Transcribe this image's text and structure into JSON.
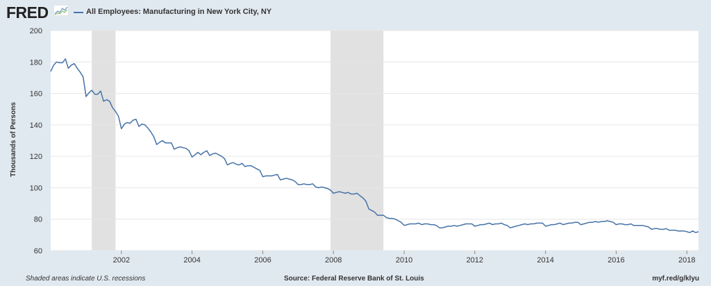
{
  "header": {
    "logo_text": "FRED",
    "title": "All Employees: Manufacturing in New York City, NY"
  },
  "footer": {
    "note": "Shaded areas indicate U.S. recessions",
    "source": "Source: Federal Reserve Bank of St. Louis",
    "url": "myf.red/g/klyu"
  },
  "colors": {
    "series": "#4572a7",
    "recession": "#e1e1e1",
    "background": "#e1e9f0",
    "plot_background": "#ffffff",
    "grid": "#e6e6e6"
  },
  "chart_data": {
    "type": "line",
    "title": "All Employees: Manufacturing in New York City, NY",
    "xlabel": "",
    "ylabel": "Thousands of Persons",
    "ylim": [
      60,
      200
    ],
    "yticks": [
      "60",
      "80",
      "100",
      "120",
      "140",
      "160",
      "180",
      "200"
    ],
    "xlim": [
      "2000-01-01",
      "2018-05-01"
    ],
    "xticks": [
      "2002",
      "2004",
      "2006",
      "2008",
      "2010",
      "2012",
      "2014",
      "2016",
      "2018"
    ],
    "grid": "horizontal",
    "recessions": [
      [
        "2001-03-01",
        "2001-11-01"
      ],
      [
        "2007-12-01",
        "2009-06-01"
      ]
    ],
    "series": [
      {
        "name": "All Employees: Manufacturing in New York City, NY",
        "x": [
          "2000-01-01",
          "2000-02-01",
          "2000-03-01",
          "2000-04-01",
          "2000-05-01",
          "2000-06-01",
          "2000-07-01",
          "2000-08-01",
          "2000-09-01",
          "2000-10-01",
          "2000-11-01",
          "2000-12-01",
          "2001-01-01",
          "2001-02-01",
          "2001-03-01",
          "2001-04-01",
          "2001-05-01",
          "2001-06-01",
          "2001-07-01",
          "2001-08-01",
          "2001-09-01",
          "2001-10-01",
          "2001-11-01",
          "2001-12-01",
          "2002-01-01",
          "2002-02-01",
          "2002-03-01",
          "2002-04-01",
          "2002-05-01",
          "2002-06-01",
          "2002-07-01",
          "2002-08-01",
          "2002-09-01",
          "2002-10-01",
          "2002-11-01",
          "2002-12-01",
          "2003-01-01",
          "2003-02-01",
          "2003-03-01",
          "2003-04-01",
          "2003-05-01",
          "2003-06-01",
          "2003-07-01",
          "2003-08-01",
          "2003-09-01",
          "2003-10-01",
          "2003-11-01",
          "2003-12-01",
          "2004-01-01",
          "2004-02-01",
          "2004-03-01",
          "2004-04-01",
          "2004-05-01",
          "2004-06-01",
          "2004-07-01",
          "2004-08-01",
          "2004-09-01",
          "2004-10-01",
          "2004-11-01",
          "2004-12-01",
          "2005-01-01",
          "2005-02-01",
          "2005-03-01",
          "2005-04-01",
          "2005-05-01",
          "2005-06-01",
          "2005-07-01",
          "2005-08-01",
          "2005-09-01",
          "2005-10-01",
          "2005-11-01",
          "2005-12-01",
          "2006-01-01",
          "2006-02-01",
          "2006-03-01",
          "2006-04-01",
          "2006-05-01",
          "2006-06-01",
          "2006-07-01",
          "2006-08-01",
          "2006-09-01",
          "2006-10-01",
          "2006-11-01",
          "2006-12-01",
          "2007-01-01",
          "2007-02-01",
          "2007-03-01",
          "2007-04-01",
          "2007-05-01",
          "2007-06-01",
          "2007-07-01",
          "2007-08-01",
          "2007-09-01",
          "2007-10-01",
          "2007-11-01",
          "2007-12-01",
          "2008-01-01",
          "2008-02-01",
          "2008-03-01",
          "2008-04-01",
          "2008-05-01",
          "2008-06-01",
          "2008-07-01",
          "2008-08-01",
          "2008-09-01",
          "2008-10-01",
          "2008-11-01",
          "2008-12-01",
          "2009-01-01",
          "2009-02-01",
          "2009-03-01",
          "2009-04-01",
          "2009-05-01",
          "2009-06-01",
          "2009-07-01",
          "2009-08-01",
          "2009-09-01",
          "2009-10-01",
          "2009-11-01",
          "2009-12-01",
          "2010-01-01",
          "2010-02-01",
          "2010-03-01",
          "2010-04-01",
          "2010-05-01",
          "2010-06-01",
          "2010-07-01",
          "2010-08-01",
          "2010-09-01",
          "2010-10-01",
          "2010-11-01",
          "2010-12-01",
          "2011-01-01",
          "2011-02-01",
          "2011-03-01",
          "2011-04-01",
          "2011-05-01",
          "2011-06-01",
          "2011-07-01",
          "2011-08-01",
          "2011-09-01",
          "2011-10-01",
          "2011-11-01",
          "2011-12-01",
          "2012-01-01",
          "2012-02-01",
          "2012-03-01",
          "2012-04-01",
          "2012-05-01",
          "2012-06-01",
          "2012-07-01",
          "2012-08-01",
          "2012-09-01",
          "2012-10-01",
          "2012-11-01",
          "2012-12-01",
          "2013-01-01",
          "2013-02-01",
          "2013-03-01",
          "2013-04-01",
          "2013-05-01",
          "2013-06-01",
          "2013-07-01",
          "2013-08-01",
          "2013-09-01",
          "2013-10-01",
          "2013-11-01",
          "2013-12-01",
          "2014-01-01",
          "2014-02-01",
          "2014-03-01",
          "2014-04-01",
          "2014-05-01",
          "2014-06-01",
          "2014-07-01",
          "2014-08-01",
          "2014-09-01",
          "2014-10-01",
          "2014-11-01",
          "2014-12-01",
          "2015-01-01",
          "2015-02-01",
          "2015-03-01",
          "2015-04-01",
          "2015-05-01",
          "2015-06-01",
          "2015-07-01",
          "2015-08-01",
          "2015-09-01",
          "2015-10-01",
          "2015-11-01",
          "2015-12-01",
          "2016-01-01",
          "2016-02-01",
          "2016-03-01",
          "2016-04-01",
          "2016-05-01",
          "2016-06-01",
          "2016-07-01",
          "2016-08-01",
          "2016-09-01",
          "2016-10-01",
          "2016-11-01",
          "2016-12-01",
          "2017-01-01",
          "2017-02-01",
          "2017-03-01",
          "2017-04-01",
          "2017-05-01",
          "2017-06-01",
          "2017-07-01",
          "2017-08-01",
          "2017-09-01",
          "2017-10-01",
          "2017-11-01",
          "2017-12-01",
          "2018-01-01",
          "2018-02-01",
          "2018-03-01",
          "2018-04-01",
          "2018-05-01"
        ],
        "values": [
          174,
          178,
          180,
          179.5,
          179.5,
          182,
          176,
          178,
          179,
          176,
          173.5,
          170.5,
          158,
          160.5,
          162,
          159.5,
          159.5,
          161.5,
          155,
          156,
          155,
          151,
          148.5,
          145.5,
          137.5,
          140.5,
          141.5,
          141,
          143,
          143.5,
          139,
          140.5,
          140,
          138,
          135.5,
          132.5,
          127.5,
          129,
          130,
          128.5,
          128.5,
          128.5,
          124.5,
          125.5,
          126,
          125.5,
          125,
          123.5,
          119.5,
          121,
          122.5,
          121,
          122.5,
          123.5,
          120.5,
          121.5,
          122,
          121,
          120,
          118.5,
          114.5,
          115.5,
          116,
          115,
          114.5,
          115.5,
          113.5,
          114,
          114,
          113,
          112,
          111,
          107,
          107.5,
          107.5,
          107.5,
          108,
          108.5,
          105,
          105.5,
          106,
          105.5,
          105,
          104,
          102,
          102,
          102.5,
          102,
          102,
          102.5,
          100.5,
          100,
          100.5,
          100,
          99.5,
          98.5,
          96.5,
          97,
          97.5,
          97,
          96.5,
          97,
          96,
          96,
          96.5,
          95,
          93.5,
          91.5,
          86.5,
          85.5,
          84.5,
          82.5,
          82.5,
          82.5,
          81,
          80.5,
          80.5,
          80,
          79,
          78,
          76,
          76.5,
          77,
          77,
          77,
          77.5,
          76.5,
          77,
          77,
          76.5,
          76.5,
          76,
          74.5,
          74.5,
          75,
          75.5,
          75.5,
          76,
          75.5,
          76,
          76.5,
          77,
          77,
          77,
          75.5,
          76,
          76.5,
          76.5,
          77,
          77.5,
          76.5,
          77,
          77,
          77.5,
          76.5,
          76,
          74.5,
          75,
          75.5,
          76,
          76.5,
          77,
          76.5,
          77,
          77,
          77.5,
          77.5,
          77.5,
          75.5,
          76,
          76.5,
          76.5,
          77,
          77.5,
          76.5,
          77,
          77.5,
          77.5,
          78,
          78,
          76.5,
          77,
          77.5,
          78,
          78,
          78.5,
          78,
          78.5,
          78.5,
          79,
          78.5,
          78,
          76.5,
          77,
          77,
          76.5,
          76.5,
          77,
          76,
          76,
          76,
          76,
          75.5,
          75,
          73.5,
          74,
          74,
          73.5,
          73.5,
          74,
          73,
          73,
          73,
          72.5,
          72.5,
          72.5,
          72,
          71.5,
          72.5,
          71.5,
          72
        ]
      }
    ]
  }
}
